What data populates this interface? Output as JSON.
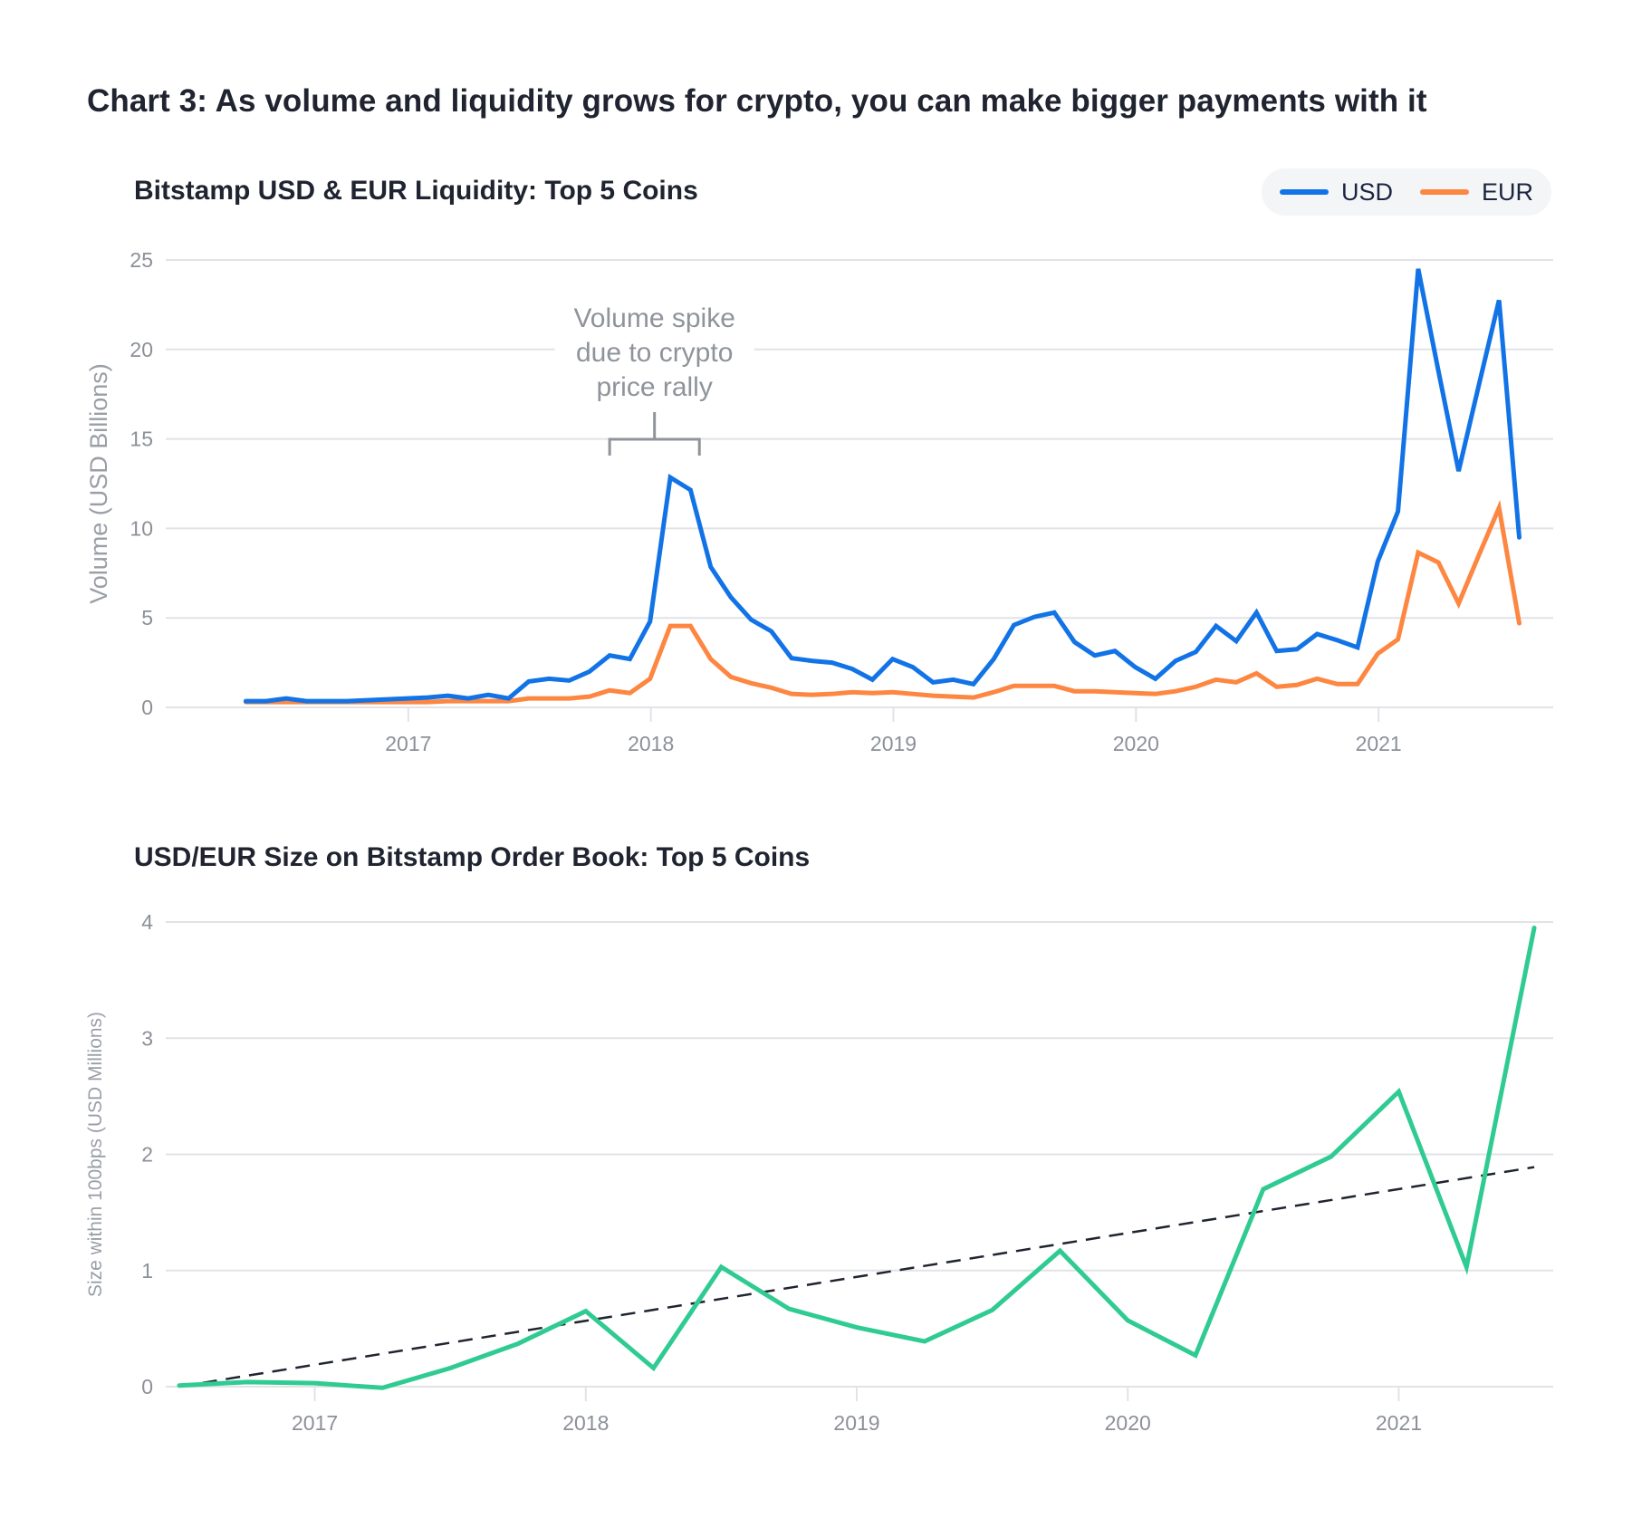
{
  "page": {
    "title": "Chart 3: As volume and liquidity grows for crypto, you can make bigger payments with it"
  },
  "colors": {
    "usd": "#1273e6",
    "eur": "#fd8641",
    "size": "#2fcb92",
    "trend": "#1f2430",
    "grid": "#e1e3e7",
    "tick_text": "#8c9097",
    "annotation": "#8f939a"
  },
  "legend": {
    "items": [
      {
        "label": "USD",
        "color_key": "usd"
      },
      {
        "label": "EUR",
        "color_key": "eur"
      }
    ]
  },
  "chart_data": [
    {
      "type": "line",
      "title": "Bitstamp USD & EUR Liquidity: Top 5 Coins",
      "xlabel": "",
      "ylabel": "Volume (USD Billions)",
      "ylim": [
        0,
        25
      ],
      "yticks": [
        0,
        5,
        10,
        15,
        20,
        25
      ],
      "xlim": [
        2016.0,
        2021.72
      ],
      "xticks": [
        2017,
        2018,
        2019,
        2020,
        2021
      ],
      "xtick_labels": [
        "2017",
        "2018",
        "2019",
        "2020",
        "2021"
      ],
      "grid": true,
      "legend_position": "top-right",
      "annotation": {
        "lines": [
          "Volume spike",
          "due to crypto",
          "price rally"
        ],
        "bracket_x_range": [
          2017.83,
          2018.2
        ]
      },
      "x_start": 2016.33,
      "x_step_months": 1,
      "series": [
        {
          "name": "USD",
          "values": [
            0.35,
            0.35,
            0.5,
            0.35,
            0.35,
            0.35,
            0.4,
            0.45,
            0.5,
            0.55,
            0.65,
            0.5,
            0.7,
            0.5,
            1.45,
            1.6,
            1.5,
            2.0,
            2.9,
            2.7,
            4.8,
            12.85,
            12.15,
            7.85,
            6.15,
            4.9,
            4.25,
            2.75,
            2.6,
            2.5,
            2.15,
            1.55,
            2.7,
            2.25,
            1.4,
            1.55,
            1.3,
            2.7,
            4.6,
            5.05,
            5.3,
            3.65,
            2.9,
            3.15,
            2.25,
            1.6,
            2.6,
            3.1,
            4.55,
            3.7,
            5.3,
            3.15,
            3.25,
            4.1,
            3.75,
            3.35,
            8.15,
            10.95,
            24.5,
            18.8,
            13.2,
            18.0,
            22.75,
            9.5
          ]
        },
        {
          "name": "EUR",
          "values": [
            0.3,
            0.3,
            0.3,
            0.3,
            0.3,
            0.3,
            0.3,
            0.3,
            0.3,
            0.3,
            0.35,
            0.35,
            0.35,
            0.35,
            0.5,
            0.5,
            0.5,
            0.6,
            0.95,
            0.8,
            1.6,
            4.55,
            4.55,
            2.7,
            1.7,
            1.35,
            1.1,
            0.75,
            0.7,
            0.75,
            0.85,
            0.8,
            0.85,
            0.75,
            0.65,
            0.6,
            0.55,
            0.85,
            1.2,
            1.2,
            1.2,
            0.9,
            0.9,
            0.85,
            0.8,
            0.75,
            0.9,
            1.15,
            1.55,
            1.4,
            1.9,
            1.15,
            1.25,
            1.6,
            1.3,
            1.3,
            3.0,
            3.8,
            8.65,
            8.1,
            5.8,
            8.5,
            11.15,
            4.7
          ]
        }
      ]
    },
    {
      "type": "line",
      "title": "USD/EUR Size on Bitstamp Order Book: Top 5 Coins",
      "xlabel": "",
      "ylabel": "Size within 100bps (USD Millions)",
      "ylim": [
        0,
        4
      ],
      "yticks": [
        0,
        1,
        2,
        3,
        4
      ],
      "xlim": [
        2016.45,
        2021.57
      ],
      "xticks": [
        2017,
        2018,
        2019,
        2020,
        2021
      ],
      "xtick_labels": [
        "2017",
        "2018",
        "2019",
        "2020",
        "2021"
      ],
      "grid": true,
      "x_start": 2016.5,
      "x_step_months": 3,
      "series": [
        {
          "name": "Size within 100bps",
          "values": [
            0.01,
            0.04,
            0.03,
            -0.01,
            0.16,
            0.37,
            0.65,
            0.16,
            1.03,
            0.67,
            0.51,
            0.39,
            0.66,
            1.17,
            0.57,
            0.27,
            1.7,
            1.98,
            2.54,
            1.03,
            3.95
          ]
        },
        {
          "name": "Trend",
          "style": "dashed",
          "values_endpoints": [
            [
              2016.5,
              0.0
            ],
            [
              2021.5,
              1.89
            ]
          ]
        }
      ]
    }
  ]
}
